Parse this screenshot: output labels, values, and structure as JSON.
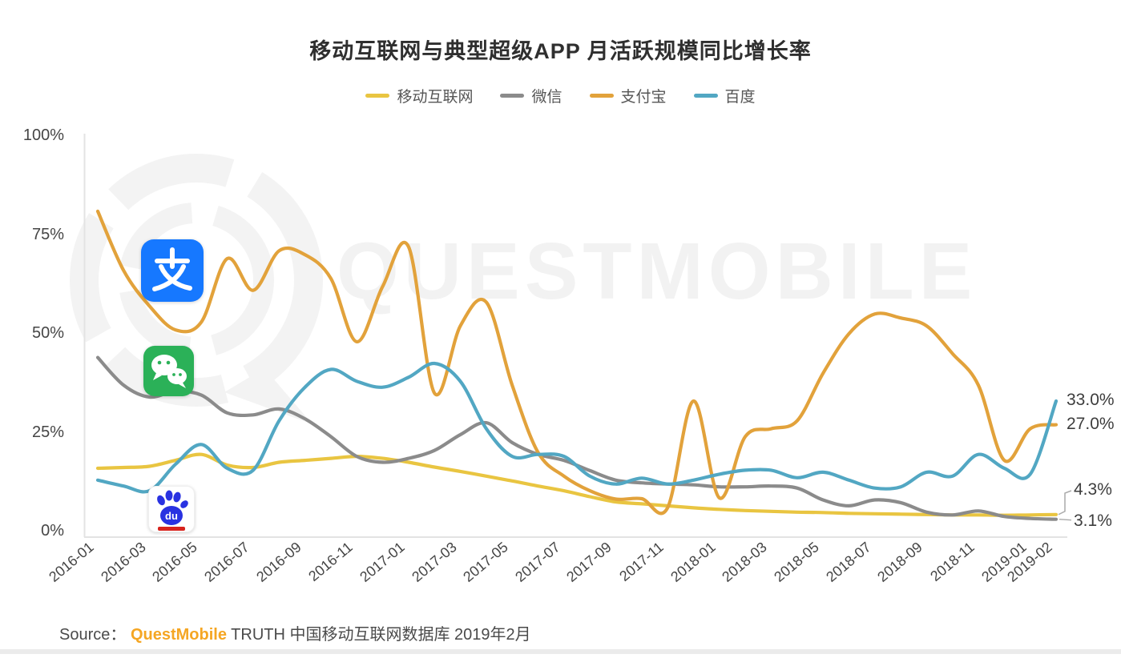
{
  "title": "移动互联网与典型超级APP 月活跃规模同比增长率",
  "legend": {
    "items": [
      {
        "key": "mobile-internet",
        "label": "移动互联网",
        "color": "#e9c541"
      },
      {
        "key": "wechat",
        "label": "微信",
        "color": "#8b8b8b"
      },
      {
        "key": "alipay",
        "label": "支付宝",
        "color": "#e2a23b"
      },
      {
        "key": "baidu",
        "label": "百度",
        "color": "#52a7c3"
      }
    ]
  },
  "watermark": {
    "text": "QUESTMOBILE"
  },
  "icons": {
    "alipay_glyph": "支",
    "baidu_glyph": "du"
  },
  "chart_data": {
    "type": "line",
    "x": [
      "2016-01",
      "2016-02",
      "2016-03",
      "2016-04",
      "2016-05",
      "2016-06",
      "2016-07",
      "2016-08",
      "2016-09",
      "2016-10",
      "2016-11",
      "2016-12",
      "2017-01",
      "2017-02",
      "2017-03",
      "2017-04",
      "2017-05",
      "2017-06",
      "2017-07",
      "2017-08",
      "2017-09",
      "2017-10",
      "2017-11",
      "2017-12",
      "2018-01",
      "2018-02",
      "2018-03",
      "2018-04",
      "2018-05",
      "2018-06",
      "2018-07",
      "2018-08",
      "2018-09",
      "2018-10",
      "2018-11",
      "2018-12",
      "2019-01",
      "2019-02"
    ],
    "x_tick_labels": [
      "2016-01",
      "2016-03",
      "2016-05",
      "2016-07",
      "2016-09",
      "2016-11",
      "2017-01",
      "2017-03",
      "2017-05",
      "2017-07",
      "2017-09",
      "2017-11",
      "2018-01",
      "2018-03",
      "2018-05",
      "2018-07",
      "2018-09",
      "2018-11",
      "2019-01",
      "2019-02"
    ],
    "y_ticks": [
      {
        "label": "0%",
        "value": 0
      },
      {
        "label": "25%",
        "value": 25
      },
      {
        "label": "50%",
        "value": 50
      },
      {
        "label": "75%",
        "value": 75
      },
      {
        "label": "100%",
        "value": 100
      }
    ],
    "ylim": [
      0,
      100
    ],
    "grid": false,
    "legend_position": "top",
    "series": [
      {
        "key": "mobile-internet",
        "name": "移动互联网",
        "color": "#e9c541",
        "values": [
          16,
          16.2,
          16.5,
          18,
          19.5,
          16.8,
          16.2,
          17.5,
          18,
          18.5,
          19,
          18.5,
          17.5,
          16.3,
          15.2,
          14,
          12.8,
          11.5,
          10.3,
          8.8,
          7.5,
          7,
          6.5,
          6,
          5.6,
          5.3,
          5.1,
          4.9,
          4.8,
          4.6,
          4.5,
          4.4,
          4.3,
          4.2,
          4.2,
          4.1,
          4.2,
          4.3
        ]
      },
      {
        "key": "wechat",
        "name": "微信",
        "color": "#8b8b8b",
        "values": [
          44,
          37,
          34,
          35.5,
          34.5,
          30,
          29.5,
          31,
          28.5,
          24,
          19,
          17.5,
          18.5,
          20.5,
          24.5,
          27.5,
          22.5,
          19.5,
          18,
          15.4,
          13,
          12.3,
          12,
          11.8,
          11.3,
          11.3,
          11.5,
          11,
          8,
          6.5,
          8,
          7.3,
          4.9,
          4.2,
          5.2,
          3.8,
          3.3,
          3.1
        ]
      },
      {
        "key": "alipay",
        "name": "支付宝",
        "color": "#e2a23b",
        "values": [
          81,
          66,
          57,
          51,
          53,
          69,
          61,
          71,
          70,
          64,
          48,
          62,
          72,
          35,
          52,
          58,
          37,
          20,
          14,
          10.3,
          8.2,
          8.3,
          6,
          33,
          8.5,
          24,
          26,
          28,
          40,
          50,
          55,
          54,
          52,
          45,
          37,
          18,
          26,
          27
        ]
      },
      {
        "key": "baidu",
        "name": "百度",
        "color": "#52a7c3",
        "values": [
          13,
          11.5,
          10.3,
          17,
          22,
          16,
          15.5,
          28,
          36.5,
          41,
          38,
          36.5,
          39,
          42.5,
          38,
          26,
          19,
          19.5,
          19,
          14,
          12,
          13.5,
          12,
          13,
          14.5,
          15.5,
          15.5,
          13.6,
          15,
          13,
          11,
          11.3,
          15,
          14,
          19.5,
          16,
          14.5,
          33
        ]
      }
    ],
    "end_labels": [
      {
        "text": "33.0%",
        "series": "百度",
        "value": 33.0
      },
      {
        "text": "27.0%",
        "series": "支付宝",
        "value": 27.0
      },
      {
        "text": "4.3%",
        "series": "移动互联网",
        "value": 4.3
      },
      {
        "text": "3.1%",
        "series": "微信",
        "value": 3.1
      }
    ]
  },
  "source": {
    "prefix": "Source：",
    "brand": "QuestMobile",
    "rest": " TRUTH 中国移动互联网数据库 2019年2月"
  }
}
